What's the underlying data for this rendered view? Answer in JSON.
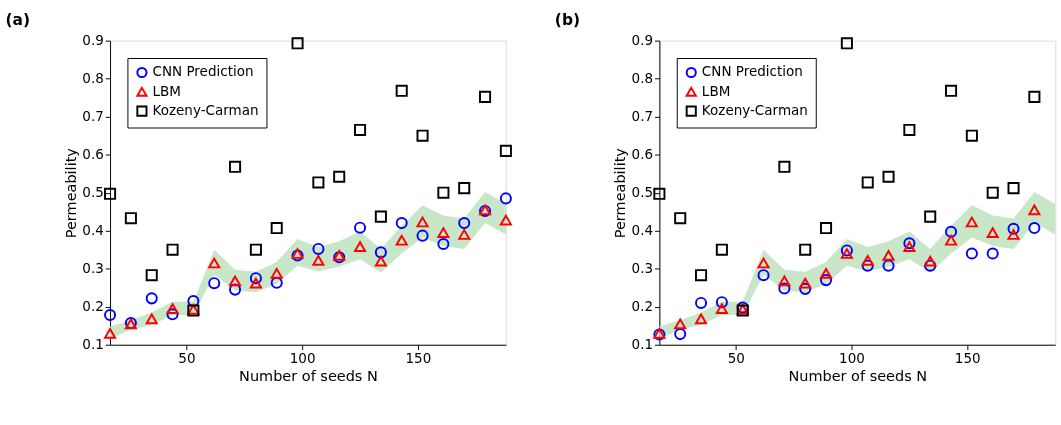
{
  "chart_data": [
    {
      "type": "scatter",
      "title": "(a)",
      "xlabel": "Number of seeds N",
      "ylabel": "Permeability",
      "x": [
        17,
        26,
        35,
        44,
        53,
        62,
        71,
        80,
        89,
        98,
        107,
        116,
        125,
        134,
        143,
        152,
        161,
        170,
        179,
        188
      ],
      "xlim": [
        17,
        188
      ],
      "xticks": [
        50,
        100,
        150
      ],
      "ylim": [
        0.1,
        0.9
      ],
      "yticks": [
        0.1,
        0.2,
        0.3,
        0.4,
        0.5,
        0.6,
        0.7,
        0.8,
        0.9
      ],
      "grid": false,
      "legend": "top left",
      "series": [
        {
          "name": "CNN Prediction",
          "color": "#0000ff",
          "marker": "circle",
          "values": [
            0.178,
            0.157,
            0.222,
            0.18,
            0.215,
            0.262,
            0.245,
            0.275,
            0.263,
            0.335,
            0.352,
            0.33,
            0.408,
            0.343,
            0.42,
            0.387,
            0.365,
            0.42,
            0.452,
            0.485
          ]
        },
        {
          "name": "LBM",
          "color": "#ff0000",
          "marker": "triangle",
          "values": [
            0.13,
            0.155,
            0.168,
            0.195,
            0.193,
            0.315,
            0.268,
            0.262,
            0.288,
            0.34,
            0.322,
            0.335,
            0.358,
            0.32,
            0.375,
            0.423,
            0.395,
            0.39,
            0.455,
            0.428
          ],
          "lower": [
            0.115,
            0.14,
            0.152,
            0.178,
            0.178,
            0.285,
            0.243,
            0.238,
            0.26,
            0.308,
            0.293,
            0.305,
            0.325,
            0.29,
            0.34,
            0.382,
            0.36,
            0.352,
            0.42,
            0.39
          ],
          "upper": [
            0.148,
            0.165,
            0.185,
            0.213,
            0.213,
            0.35,
            0.297,
            0.292,
            0.318,
            0.378,
            0.357,
            0.372,
            0.398,
            0.352,
            0.413,
            0.467,
            0.44,
            0.432,
            0.502,
            0.47
          ]
        },
        {
          "name": "Kozeny-Carman",
          "color": "#000000",
          "marker": "square",
          "values": [
            0.497,
            0.433,
            0.283,
            0.35,
            0.19,
            null,
            0.568,
            0.35,
            0.407,
            0.893,
            0.527,
            0.542,
            0.665,
            0.437,
            0.768,
            0.65,
            0.5,
            0.512,
            0.752,
            0.61
          ]
        }
      ]
    },
    {
      "type": "scatter",
      "title": "(b)",
      "xlabel": "Number of seeds N",
      "ylabel": "Permeability",
      "x": [
        17,
        26,
        35,
        44,
        53,
        62,
        71,
        80,
        89,
        98,
        107,
        116,
        125,
        134,
        143,
        152,
        161,
        170,
        179,
        188
      ],
      "xlim": [
        17,
        188
      ],
      "xticks": [
        50,
        100,
        150
      ],
      "ylim": [
        0.1,
        0.9
      ],
      "yticks": [
        0.1,
        0.2,
        0.3,
        0.4,
        0.5,
        0.6,
        0.7,
        0.8,
        0.9
      ],
      "grid": false,
      "legend": "top left",
      "series": [
        {
          "name": "CNN Prediction",
          "color": "#0000ff",
          "marker": "circle",
          "values": [
            0.127,
            0.128,
            0.21,
            0.212,
            0.198,
            0.283,
            0.248,
            0.247,
            0.27,
            0.348,
            0.308,
            0.308,
            0.367,
            0.308,
            0.397,
            0.34,
            0.34,
            0.405,
            0.407,
            null
          ]
        },
        {
          "name": "LBM",
          "color": "#ff0000",
          "marker": "triangle",
          "values": [
            0.13,
            0.155,
            0.168,
            0.195,
            0.193,
            0.315,
            0.268,
            0.262,
            0.288,
            0.34,
            0.322,
            0.335,
            0.358,
            0.32,
            0.375,
            0.423,
            0.395,
            0.39,
            0.455,
            null
          ],
          "lower": [
            0.115,
            0.14,
            0.152,
            0.178,
            0.178,
            0.285,
            0.243,
            0.238,
            0.26,
            0.308,
            0.293,
            0.305,
            0.325,
            0.29,
            0.34,
            0.382,
            0.36,
            0.352,
            0.42,
            0.39
          ],
          "upper": [
            0.148,
            0.165,
            0.185,
            0.213,
            0.213,
            0.35,
            0.297,
            0.292,
            0.318,
            0.378,
            0.357,
            0.372,
            0.398,
            0.352,
            0.413,
            0.467,
            0.44,
            0.432,
            0.502,
            0.47
          ]
        },
        {
          "name": "Kozeny-Carman",
          "color": "#000000",
          "marker": "square",
          "values": [
            0.497,
            0.433,
            0.283,
            0.35,
            0.19,
            null,
            0.568,
            0.35,
            0.407,
            0.893,
            0.527,
            0.542,
            0.665,
            0.437,
            0.768,
            0.65,
            0.5,
            0.512,
            0.752,
            null
          ]
        }
      ]
    }
  ]
}
